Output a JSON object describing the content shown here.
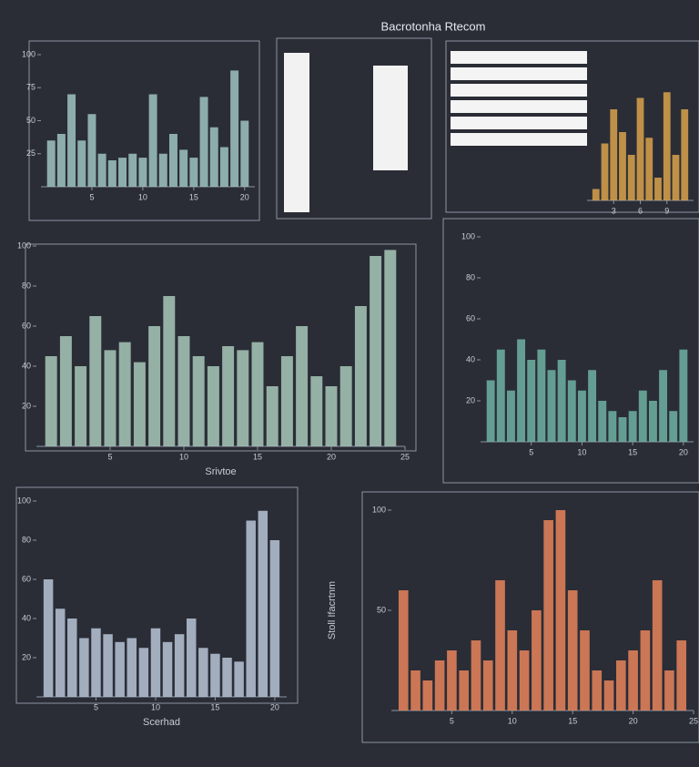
{
  "title": "Bacrotonha Rtecom",
  "chart_data": [
    {
      "type": "bar",
      "x": [
        1,
        2,
        3,
        4,
        5,
        6,
        7,
        8,
        9,
        10,
        11,
        12,
        13,
        14,
        15,
        16,
        17,
        18,
        19,
        20
      ],
      "values": [
        35,
        40,
        70,
        35,
        55,
        25,
        20,
        22,
        25,
        22,
        70,
        25,
        40,
        28,
        22,
        68,
        45,
        30,
        88,
        50
      ],
      "xlim": [
        0,
        21
      ],
      "xticks": [
        5,
        10,
        15,
        20
      ],
      "ylim": [
        0,
        100
      ],
      "yticks": [
        25,
        50,
        75,
        100
      ],
      "color": "#9ec4c0"
    },
    {
      "type": "bar",
      "x": [
        1,
        2,
        3,
        4,
        5,
        6,
        7,
        8,
        9,
        10,
        11
      ],
      "values": [
        10,
        50,
        80,
        60,
        40,
        90,
        55,
        20,
        95,
        40,
        80
      ],
      "xlim": [
        0,
        12
      ],
      "xticks": [
        3,
        6,
        9
      ],
      "ylim": [
        0,
        100
      ],
      "color": "#d9a24a"
    },
    {
      "type": "bar",
      "x": [
        1,
        2,
        3,
        4,
        5,
        6,
        7,
        8,
        9,
        10,
        11,
        12,
        13,
        14,
        15,
        16,
        17,
        18,
        19,
        20,
        21,
        22,
        23,
        24
      ],
      "values": [
        45,
        55,
        40,
        65,
        48,
        52,
        42,
        60,
        75,
        55,
        45,
        40,
        50,
        48,
        52,
        30,
        45,
        60,
        35,
        30,
        40,
        70,
        95,
        98
      ],
      "xlim": [
        0,
        25
      ],
      "xticks": [
        5,
        10,
        15,
        20,
        25
      ],
      "ylim": [
        0,
        100
      ],
      "yticks": [
        20,
        40,
        60,
        80,
        100
      ],
      "color": "#a8c8b8",
      "xlabel": "Srivtoe"
    },
    {
      "type": "bar",
      "x": [
        1,
        2,
        3,
        4,
        5,
        6,
        7,
        8,
        9,
        10,
        11,
        12,
        13,
        14,
        15,
        16,
        17,
        18,
        19,
        20
      ],
      "values": [
        30,
        45,
        25,
        50,
        40,
        45,
        35,
        40,
        30,
        25,
        35,
        20,
        15,
        12,
        15,
        25,
        20,
        35,
        15,
        45
      ],
      "xlim": [
        0,
        21
      ],
      "xticks": [
        5,
        10,
        15,
        20
      ],
      "ylim": [
        0,
        100
      ],
      "yticks": [
        20,
        40,
        60,
        80,
        100
      ],
      "color": "#6fb3a2"
    },
    {
      "type": "bar",
      "x": [
        1,
        2,
        3,
        4,
        5,
        6,
        7,
        8,
        9,
        10,
        11,
        12,
        13,
        14,
        15,
        16,
        17,
        18,
        19,
        20
      ],
      "values": [
        60,
        45,
        40,
        30,
        35,
        32,
        28,
        30,
        25,
        35,
        28,
        32,
        40,
        25,
        22,
        20,
        18,
        90,
        95,
        80
      ],
      "xlim": [
        0,
        21
      ],
      "xticks": [
        5,
        10,
        15,
        20
      ],
      "ylim": [
        0,
        100
      ],
      "yticks": [
        20,
        40,
        60,
        80,
        100
      ],
      "color": "#b7c4d6",
      "xlabel": "Scerhad"
    },
    {
      "type": "bar",
      "x": [
        1,
        2,
        3,
        4,
        5,
        6,
        7,
        8,
        9,
        10,
        11,
        12,
        13,
        14,
        15,
        16,
        17,
        18,
        19,
        20,
        21,
        22,
        23,
        24
      ],
      "values": [
        60,
        20,
        15,
        25,
        30,
        20,
        35,
        25,
        65,
        40,
        30,
        50,
        95,
        100,
        60,
        40,
        20,
        15,
        25,
        30,
        40,
        65,
        20,
        35
      ],
      "xlim": [
        0,
        25
      ],
      "xticks": [
        5,
        10,
        15,
        20,
        25
      ],
      "ylim": [
        0,
        100
      ],
      "yticks": [
        50,
        100
      ],
      "color": "#e8845a",
      "ylabel": "Stoll Ifacrtnm"
    }
  ]
}
